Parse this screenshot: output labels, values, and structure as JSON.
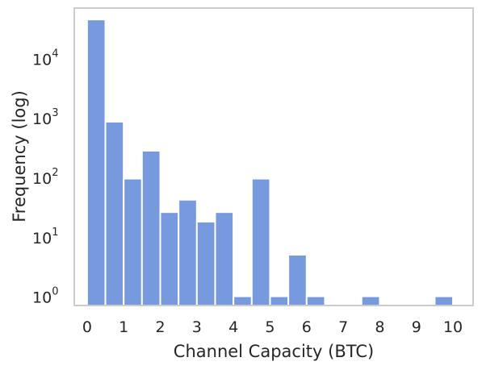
{
  "chart_data": {
    "type": "bar",
    "title": "",
    "xlabel": "Channel Capacity (BTC)",
    "ylabel": "Frequency (log)",
    "x_ticks": [
      "0",
      "1",
      "2",
      "3",
      "4",
      "5",
      "6",
      "7",
      "8",
      "9",
      "10"
    ],
    "y_ticks": [
      {
        "base": "10",
        "exp": "0"
      },
      {
        "base": "10",
        "exp": "1"
      },
      {
        "base": "10",
        "exp": "2"
      },
      {
        "base": "10",
        "exp": "3"
      },
      {
        "base": "10",
        "exp": "4"
      }
    ],
    "y_scale": "log",
    "xlim": [
      -0.35,
      10.55
    ],
    "ylim": [
      0.7,
      70000
    ],
    "grid": false,
    "bar_color": "#7799dd",
    "bins": [
      {
        "x0": 0.0,
        "x1": 0.5,
        "count": 45000
      },
      {
        "x0": 0.5,
        "x1": 1.0,
        "count": 860
      },
      {
        "x0": 1.0,
        "x1": 1.5,
        "count": 95
      },
      {
        "x0": 1.5,
        "x1": 2.0,
        "count": 280
      },
      {
        "x0": 2.0,
        "x1": 2.5,
        "count": 26
      },
      {
        "x0": 2.5,
        "x1": 3.0,
        "count": 42
      },
      {
        "x0": 3.0,
        "x1": 3.5,
        "count": 18
      },
      {
        "x0": 3.5,
        "x1": 4.0,
        "count": 26
      },
      {
        "x0": 4.0,
        "x1": 4.5,
        "count": 1
      },
      {
        "x0": 4.5,
        "x1": 5.0,
        "count": 95
      },
      {
        "x0": 5.0,
        "x1": 5.5,
        "count": 1
      },
      {
        "x0": 5.5,
        "x1": 6.0,
        "count": 5
      },
      {
        "x0": 6.0,
        "x1": 6.5,
        "count": 1
      },
      {
        "x0": 6.5,
        "x1": 7.0,
        "count": 0
      },
      {
        "x0": 7.0,
        "x1": 7.5,
        "count": 0
      },
      {
        "x0": 7.5,
        "x1": 8.0,
        "count": 1
      },
      {
        "x0": 8.0,
        "x1": 8.5,
        "count": 0
      },
      {
        "x0": 8.5,
        "x1": 9.0,
        "count": 0
      },
      {
        "x0": 9.0,
        "x1": 9.5,
        "count": 0
      },
      {
        "x0": 9.5,
        "x1": 10.0,
        "count": 1
      }
    ]
  }
}
